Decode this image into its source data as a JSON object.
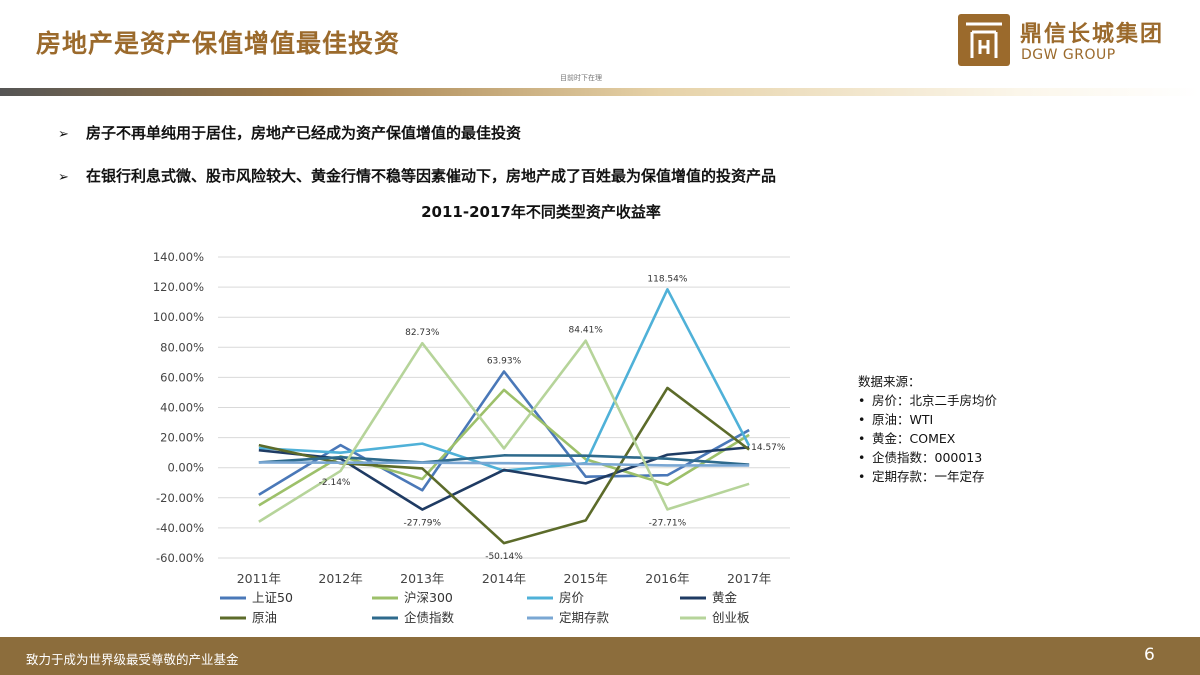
{
  "header": {
    "title": "房地产是资产保值增值最佳投资",
    "subnote": "目前时下在理",
    "brand_cn": "鼎信长城集团",
    "brand_en": "DGW GROUP"
  },
  "bullets": [
    {
      "arrow": "➢",
      "text": "房子不再单纯用于居住，房地产已经成为资产保值增值的最佳投资"
    },
    {
      "arrow": "➢",
      "text": "在银行利息式微、股市风险较大、黄金行情不稳等因素催动下，房地产成了百姓最为保值增值的投资产品"
    }
  ],
  "chart_data": {
    "type": "line",
    "title": "2011-2017年不同类型资产收益率",
    "xlabel": "",
    "ylabel": "",
    "categories": [
      "2011年",
      "2012年",
      "2013年",
      "2014年",
      "2015年",
      "2016年",
      "2017年"
    ],
    "ylim": [
      -60,
      140
    ],
    "ytick_step": 20,
    "ytick_labels": [
      "-60.00%",
      "-40.00%",
      "-20.00%",
      "0.00%",
      "20.00%",
      "40.00%",
      "60.00%",
      "80.00%",
      "100.00%",
      "120.00%",
      "140.00%"
    ],
    "grid": true,
    "legend_position": "bottom",
    "series": [
      {
        "name": "上证50",
        "color": "#4a78b8",
        "values": [
          -18,
          15,
          -15,
          63.93,
          -6,
          -5,
          25
        ]
      },
      {
        "name": "沪深300",
        "color": "#9dc06a",
        "values": [
          -25,
          7.5,
          -7.5,
          51.7,
          5.6,
          -11.3,
          21.8
        ]
      },
      {
        "name": "房价",
        "color": "#4fb1d8",
        "values": [
          13,
          10,
          16,
          -2,
          3,
          118.54,
          14.57
        ]
      },
      {
        "name": "黄金",
        "color": "#1f3b63",
        "values": [
          11.6,
          6,
          -27.79,
          -1.5,
          -10.4,
          8.6,
          13.5
        ]
      },
      {
        "name": "原油",
        "color": "#5c6b2a",
        "values": [
          15,
          3,
          -0.5,
          -50.14,
          -35,
          53,
          12
        ]
      },
      {
        "name": "企债指数",
        "color": "#2e6a8c",
        "values": [
          3.5,
          7,
          3.5,
          8.2,
          8,
          6,
          2
        ]
      },
      {
        "name": "定期存款",
        "color": "#7aa7d3",
        "values": [
          3.5,
          3.3,
          3.3,
          3.0,
          2.5,
          1.5,
          1.5
        ]
      },
      {
        "name": "创业板",
        "color": "#b6d49a",
        "values": [
          -35.9,
          -2.14,
          82.73,
          12.8,
          84.41,
          -27.71,
          -10.7
        ]
      }
    ],
    "annotations": [
      {
        "text": "82.73%",
        "x": "2013年",
        "y": 82.73,
        "pos": "above"
      },
      {
        "text": "63.93%",
        "x": "2014年",
        "y": 63.93,
        "pos": "above"
      },
      {
        "text": "84.41%",
        "x": "2015年",
        "y": 84.41,
        "pos": "above"
      },
      {
        "text": "118.54%",
        "x": "2016年",
        "y": 118.54,
        "pos": "above"
      },
      {
        "text": "-2.14%",
        "x": "2012年",
        "y": -2.14,
        "pos": "left"
      },
      {
        "text": "-27.79%",
        "x": "2013年",
        "y": -27.79,
        "pos": "below"
      },
      {
        "text": "-50.14%",
        "x": "2014年",
        "y": -50.14,
        "pos": "below"
      },
      {
        "text": "-27.71%",
        "x": "2016年",
        "y": -27.71,
        "pos": "below"
      },
      {
        "text": "14.57%",
        "x": "2017年",
        "y": 14.57,
        "pos": "right"
      }
    ]
  },
  "source": {
    "title": "数据来源：",
    "items": [
      "房价：北京二手房均价",
      "原油：WTI",
      "黄金：COMEX",
      "企债指数：000013",
      "定期存款：一年定存"
    ]
  },
  "footer": {
    "text": "致力于成为世界级最受尊敬的产业基金",
    "page": "6"
  },
  "colors": {
    "brand": "#9b6a2c",
    "footer_bg": "#8c6d3c"
  }
}
